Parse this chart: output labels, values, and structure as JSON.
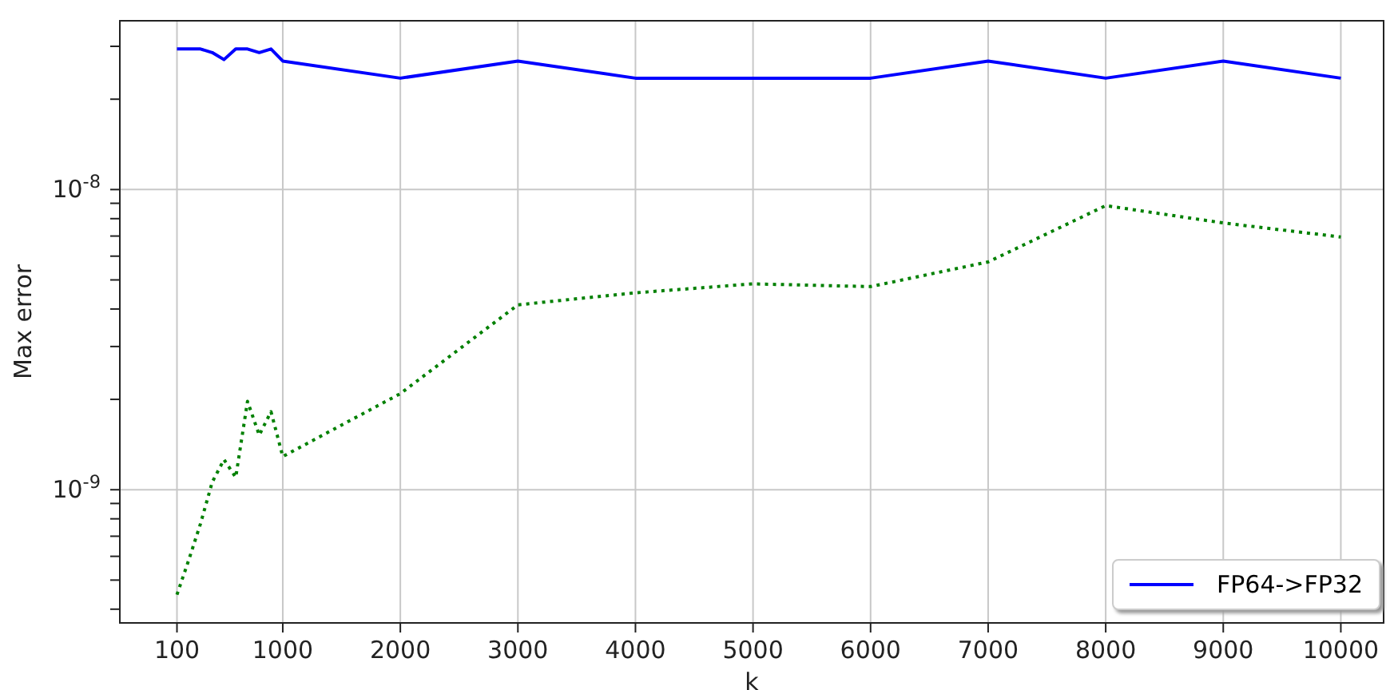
{
  "chart_data": {
    "type": "line",
    "xlabel": "k",
    "ylabel": "Max error",
    "x": [
      100,
      200,
      300,
      400,
      500,
      600,
      700,
      800,
      900,
      1000,
      2000,
      3000,
      4000,
      5000,
      6000,
      7000,
      8000,
      9000,
      10000
    ],
    "series": [
      {
        "name": "FP64->FP32",
        "color": "#0000ff",
        "line_style": "solid",
        "values": [
          2.94e-08,
          2.94e-08,
          2.94e-08,
          2.86e-08,
          2.71e-08,
          2.94e-08,
          2.94e-08,
          2.86e-08,
          2.94e-08,
          2.68e-08,
          2.35e-08,
          2.68e-08,
          2.35e-08,
          2.35e-08,
          2.35e-08,
          2.68e-08,
          2.35e-08,
          2.68e-08,
          2.35e-08
        ]
      },
      {
        "color": "#008000",
        "line_style": "dotted",
        "values": [
          4.47e-10,
          5.83e-10,
          7.7e-10,
          1.06e-09,
          1.26e-09,
          1.1e-09,
          1.97e-09,
          1.52e-09,
          1.82e-09,
          1.29e-09,
          2.09e-09,
          4.13e-09,
          4.53e-09,
          4.85e-09,
          4.75e-09,
          5.74e-09,
          8.84e-09,
          7.74e-09,
          6.95e-09
        ]
      }
    ],
    "log": "y",
    "xlim": [
      -386,
      10364
    ],
    "xticks": [
      100,
      1000,
      2000,
      3000,
      4000,
      5000,
      6000,
      7000,
      8000,
      9000,
      10000
    ],
    "ylim": [
      3.6e-10,
      3.65e-08
    ],
    "yticks": [
      {
        "value": 4e-10,
        "label": null
      },
      {
        "value": 5e-10,
        "label": null
      },
      {
        "value": 6e-10,
        "label": null
      },
      {
        "value": 7e-10,
        "label": null
      },
      {
        "value": 8e-10,
        "label": null
      },
      {
        "value": 9e-10,
        "label": null
      },
      {
        "value": 1e-09,
        "label": "10$^{-9}$"
      },
      {
        "value": 2e-09,
        "label": null
      },
      {
        "value": 3e-09,
        "label": null
      },
      {
        "value": 4e-09,
        "label": null
      },
      {
        "value": 5e-09,
        "label": null
      },
      {
        "value": 6e-09,
        "label": null
      },
      {
        "value": 7e-09,
        "label": null
      },
      {
        "value": 8e-09,
        "label": null
      },
      {
        "value": 9e-09,
        "label": null
      },
      {
        "value": 1e-08,
        "label": "10$^{-8}$"
      },
      {
        "value": 2e-08,
        "label": null
      },
      {
        "value": 3e-08,
        "label": null
      }
    ],
    "grid": true,
    "legend": "bottom right",
    "marker": "none"
  }
}
